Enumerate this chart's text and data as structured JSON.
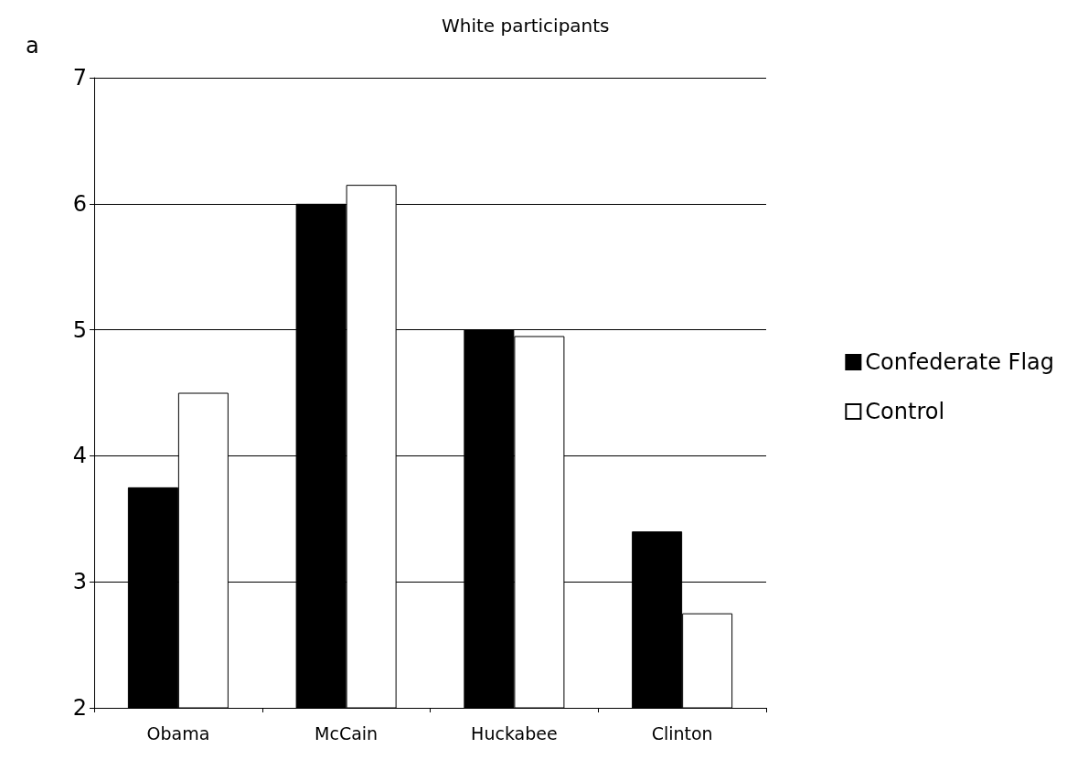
{
  "chart_data": {
    "type": "bar",
    "title": "White participants",
    "annotations": [
      "a"
    ],
    "categories": [
      "Obama",
      "McCain",
      "Huckabee",
      "Clinton"
    ],
    "series": [
      {
        "name": "Confederate Flag",
        "color": "#000000",
        "values": [
          3.75,
          6.0,
          5.0,
          3.4
        ]
      },
      {
        "name": "Control",
        "color": "#ffffff",
        "values": [
          4.5,
          6.15,
          4.95,
          2.75
        ]
      }
    ],
    "ylim": [
      2,
      7
    ],
    "yticks": [
      2,
      3,
      4,
      5,
      6,
      7
    ],
    "grid": "y",
    "legend": "right"
  }
}
